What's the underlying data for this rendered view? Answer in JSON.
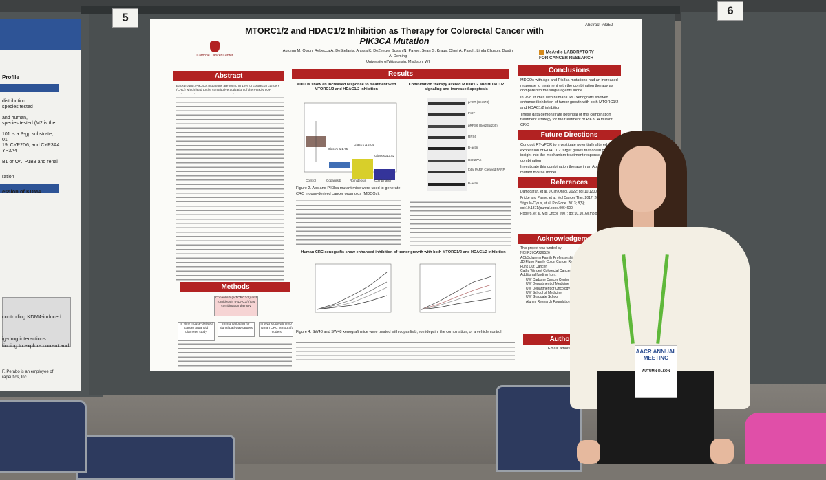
{
  "board_numbers": {
    "left": "5",
    "right": "6"
  },
  "poster": {
    "abstract_no": "Abstract #3352",
    "title_line1": "MTORC1/2 and HDAC1/2 Inhibition as Therapy for Colorectal Cancer with",
    "title_line2": "PIK3CA Mutation",
    "authors": "Autumn M. Olson, Rebecca A. DeStefanis, Alyssa K. DeZeeuw, Susan N. Payne, Sean G. Kraus, Cheri A. Pasch, Linda Clipson, Dustin A. Deming",
    "affiliation": "University of Wisconsin, Madison, WI",
    "logo_left": "Carbone Cancer Center",
    "logo_right": "McArdle LABORATORY FOR CANCER RESEARCH",
    "sections": {
      "abstract": "Abstract",
      "methods": "Methods",
      "results": "Results",
      "conclusions": "Conclusions",
      "future": "Future Directions",
      "references": "References",
      "ack": "Acknowledgements",
      "author_contact": "Author Contact"
    },
    "abstract_background": "Background: PIK3CA mutations are found in 18% of colorectal cancers (CRC) which lead to the constitutive activation of the PI3K/MTOR pathway and can promote tumorigenesis.",
    "results_panel1_title": "MDCOs show an increased response to treatment with MTORC1/2 and HDAC1/2 inhibition",
    "results_panel2_title": "Combination therapy altered MTOR1/2 and HDAC1/2 signaling and increased apoptosis",
    "results_panel3_title": "Human CRC xenografts show enhanced inhibition of tumor growth with both MTORC1/2 and HDAC1/2 inhibition",
    "fig2_caption": "Figure 2. Apc and Pik3ca mutant mice were used to generate CRC mouse-derived cancer organoids (MDCOs).",
    "fig4_caption": "Figure 4. SW48 and SW48 xenograft mice were treated with copanlisib, romidepsin, the combination, or a vehicle control.",
    "box_labels": [
      "Glass's Δ 1.75",
      "Glass's Δ 2.04",
      "Glass's Δ 2.82"
    ],
    "legend": [
      "Control",
      "Copanlisib",
      "Romidepsin",
      "Combination"
    ],
    "western_labels": [
      "pAKT (Ser473)",
      "tAKT",
      "pRPS6 (Ser235/236)",
      "RPS6",
      "B-actin",
      "H3K27Ac",
      "total PARP Cleaved PARP",
      "B-actin"
    ],
    "methods_boxes": [
      "Copanlisib (MTORC1/2) and romidepsin (HDAC1/2) as combination therapy",
      "In vitro mouse-derived cancer organoid diameter study",
      "Immunoblotting for signal pathway targets",
      "In vivo study with two human CRC xenograft models"
    ],
    "conclusions": [
      "MDCOs with Apc and Pik3ca mutations had an increased response to treatment with the combination therapy as compared to the single agents alone",
      "In vivo studies with human CRC xenografts showed enhanced inhibition of tumor growth with both MTORC1/2 and HDAC1/2 inhibition",
      "These data demonstrate potential of this combination treatment strategy for the treatment of PIK3CA mutant CRC"
    ],
    "future": [
      "Conduct RT-qPCR to investigate potentially altered expression of HDAC1/2 target genes that could provide insight into the mechanism treatment response with this combination",
      "Investigate this combination therapy in an Apc and Pik3ca mutant mouse model"
    ],
    "references": [
      "Damodaran, et al. J Clin Oncol. 2022; doi:10.1200/JCO.21.01648",
      "Fricke and Payne, et al. Mol Cancer Ther. 2017; 2068-2071",
      "Stypula-Cyrus, et al. PloS one. 2013; 8(5); doi:10.1371/journal.pone.0064600",
      "Ropero, et al. Mol Oncol. 2007; doi:10.1016/j.molonc.2007.01.001"
    ],
    "ack_intro": "This project was funded by:",
    "ack": [
      "NCI R37CA226526",
      "ACI/Schwenn Family Professorship",
      "JD Fluno Family Colon Cancer Research Program",
      "Funk Out Cancer",
      "Cathy Wingert Colorectal Cancer",
      "Additional funding from:",
      "UW Carbone Cancer Center",
      "UW Department of Medicine",
      "UW Department of Oncology",
      "UW School of Medicine",
      "UW Graduate School",
      "Alumni Research Foundation"
    ],
    "email_label": "Email: amols"
  },
  "left_poster": {
    "heading": "Profile",
    "lines": [
      "distribution",
      "species tested",
      "and human,",
      "species tested (M2 is the",
      "101 is a P-gp substrate,",
      "01",
      "19, CYP2D6, and CYP3A4",
      "YP3A4",
      "B1 or OATP1B3 and renal",
      "ration",
      "ession of KDM4",
      "controlling KDM4-induced",
      "ig-drug interactions.",
      "tinuing to explore current and",
      "F. Perabo is an employee of",
      "rapeutics, Inc."
    ]
  },
  "badge": {
    "logo": "AACR ANNUAL MEETING",
    "name": "AUTUMN OLSON"
  }
}
